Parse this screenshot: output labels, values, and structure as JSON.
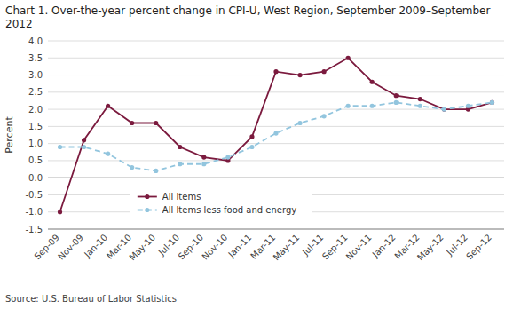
{
  "chart_data": {
    "type": "line",
    "title": "Chart 1. Over-the-year percent change in CPI-U, West Region, September 2009–September\n2012",
    "y_label": "Percent",
    "annotations": [
      "Source: U.S. Bureau of Labor Statistics"
    ],
    "categories": [
      "Sep-09",
      "Nov-09",
      "Jan-10",
      "Mar-10",
      "May-10",
      "Jul-10",
      "Sep-10",
      "Nov-10",
      "Jan-11",
      "Mar-11",
      "May-11",
      "Jul-11",
      "Sep-11",
      "Nov-11",
      "Jan-12",
      "Mar-12",
      "May-12",
      "Jul-12",
      "Sep-12"
    ],
    "series": [
      {
        "name": "All Items",
        "color": "#7B1A3E",
        "line_style": "solid",
        "marker": "circle",
        "values": [
          -1.0,
          1.1,
          2.1,
          1.6,
          1.6,
          0.9,
          0.6,
          0.5,
          1.2,
          3.1,
          3.0,
          3.1,
          3.5,
          2.8,
          2.4,
          2.3,
          2.0,
          2.0,
          2.2
        ]
      },
      {
        "name": "All Items less food and energy",
        "color": "#92C5DE",
        "line_style": "dashed",
        "marker": "circle",
        "values": [
          0.9,
          0.9,
          0.7,
          0.3,
          0.2,
          0.4,
          0.4,
          0.6,
          0.9,
          1.3,
          1.6,
          1.8,
          2.1,
          2.1,
          2.2,
          2.1,
          2.0,
          2.1,
          2.2
        ]
      }
    ],
    "ylim": [
      -1.5,
      4.0
    ],
    "yticks": [
      -1.5,
      {
        "value": -1.0,
        "label": "-1.0"
      },
      -0.5,
      {
        "value": 0.0,
        "label": "0.0"
      },
      0.5,
      {
        "value": 1.0,
        "label": "1.0"
      },
      1.5,
      {
        "value": 2.0,
        "label": "2.0"
      },
      2.5,
      {
        "value": 3.0,
        "label": "3.0"
      },
      3.5,
      {
        "value": 4.0,
        "label": "4.0"
      }
    ],
    "grid": true,
    "legend": "bottom"
  }
}
